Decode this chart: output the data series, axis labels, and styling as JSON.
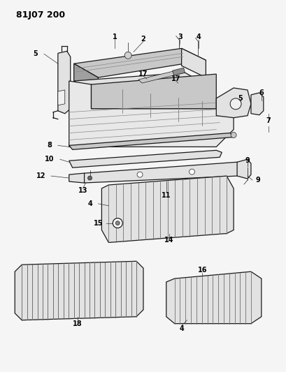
{
  "title_text": "81J07 200",
  "bg_color": "#f5f5f5",
  "line_color": "#1a1a1a",
  "label_color": "#000000",
  "title_fontsize": 9,
  "label_fontsize": 7,
  "fig_width": 4.1,
  "fig_height": 5.33,
  "dpi": 100,
  "lw_main": 0.9,
  "lw_thin": 0.5,
  "part_gray": "#c8c8c8",
  "part_gray2": "#e2e2e2",
  "part_dark": "#a0a0a0",
  "slat_dark": "#707070",
  "slat_mid": "#b0b0b0"
}
